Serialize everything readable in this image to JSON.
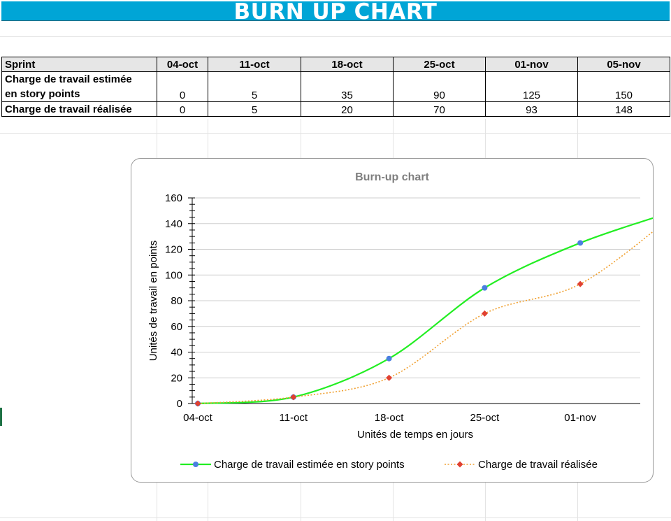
{
  "title": "BURN UP CHART",
  "table": {
    "header": [
      "Sprint",
      "04-oct",
      "11-oct",
      "18-oct",
      "25-oct",
      "01-nov",
      "05-nov"
    ],
    "rows": [
      {
        "label_line1": "Charge de travail estimée",
        "label_line2": "en story points",
        "values": [
          "0",
          "5",
          "35",
          "90",
          "125",
          "150"
        ]
      },
      {
        "label": "Charge de travail réalisée",
        "values": [
          "0",
          "5",
          "20",
          "70",
          "93",
          "148"
        ]
      }
    ]
  },
  "chart_data": {
    "type": "line",
    "title": "Burn-up chart",
    "xlabel": "Unités de temps en jours",
    "ylabel": "Unités de travail en points",
    "categories": [
      "04-oct",
      "11-oct",
      "18-oct",
      "25-oct",
      "01-nov",
      "05-nov"
    ],
    "x_tick_labels": [
      "04-oct",
      "11-oct",
      "18-oct",
      "25-oct",
      "01-nov"
    ],
    "y_ticks": [
      "0",
      "20",
      "40",
      "60",
      "80",
      "100",
      "120",
      "140",
      "160"
    ],
    "ylim": [
      0,
      160
    ],
    "grid": true,
    "legend_position": "bottom",
    "series": [
      {
        "name": "Charge de travail estimée en story points",
        "values": [
          0,
          5,
          35,
          90,
          125,
          150
        ],
        "line_color": "#22ee22",
        "marker_color": "#4a7fe0",
        "marker": "circle",
        "style": "solid"
      },
      {
        "name": "Charge de travail réalisée",
        "values": [
          0,
          5,
          20,
          70,
          93,
          148
        ],
        "line_color": "#f0a030",
        "marker_color": "#e04030",
        "marker": "diamond",
        "style": "dotted"
      }
    ]
  }
}
